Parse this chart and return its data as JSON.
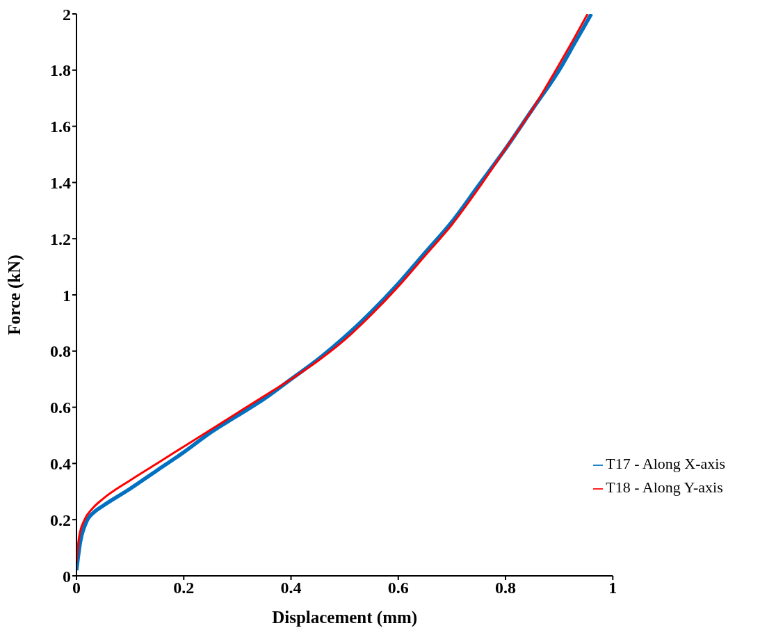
{
  "chart_data": {
    "type": "line",
    "xlabel": "Displacement (mm)",
    "ylabel": "Force (kN)",
    "xlim": [
      0,
      1
    ],
    "xticks": [
      0,
      0.2,
      0.4,
      0.6,
      0.8,
      1
    ],
    "ylim": [
      0,
      2
    ],
    "yticks": [
      0,
      0.2,
      0.4,
      0.6,
      0.8,
      1,
      1.2,
      1.4,
      1.6,
      1.8,
      2
    ],
    "grid": false,
    "legend": "bottom right",
    "marker": "none",
    "line_style": "solid",
    "series": [
      {
        "name": "T17 - Along X-axis",
        "color": "#0070c0",
        "x": [
          0,
          0.007,
          0.018,
          0.035,
          0.05,
          0.1,
          0.15,
          0.2,
          0.25,
          0.3,
          0.35,
          0.4,
          0.45,
          0.5,
          0.55,
          0.6,
          0.65,
          0.7,
          0.75,
          0.8,
          0.85,
          0.9,
          0.93,
          0.96
        ],
        "values": [
          0.02,
          0.12,
          0.19,
          0.23,
          0.25,
          0.31,
          0.375,
          0.44,
          0.51,
          0.57,
          0.63,
          0.7,
          0.77,
          0.85,
          0.94,
          1.04,
          1.15,
          1.26,
          1.39,
          1.52,
          1.66,
          1.8,
          1.9,
          2.0
        ]
      },
      {
        "name": "T18 - Along Y-axis",
        "color": "#ff0000",
        "x": [
          0,
          0.005,
          0.015,
          0.03,
          0.05,
          0.1,
          0.15,
          0.2,
          0.25,
          0.3,
          0.35,
          0.4,
          0.45,
          0.5,
          0.55,
          0.6,
          0.65,
          0.7,
          0.75,
          0.8,
          0.85,
          0.9,
          0.93,
          0.953
        ],
        "values": [
          0.05,
          0.14,
          0.2,
          0.24,
          0.275,
          0.34,
          0.4,
          0.46,
          0.52,
          0.58,
          0.64,
          0.7,
          0.765,
          0.84,
          0.93,
          1.03,
          1.14,
          1.25,
          1.38,
          1.52,
          1.66,
          1.82,
          1.92,
          2.0
        ]
      }
    ]
  }
}
